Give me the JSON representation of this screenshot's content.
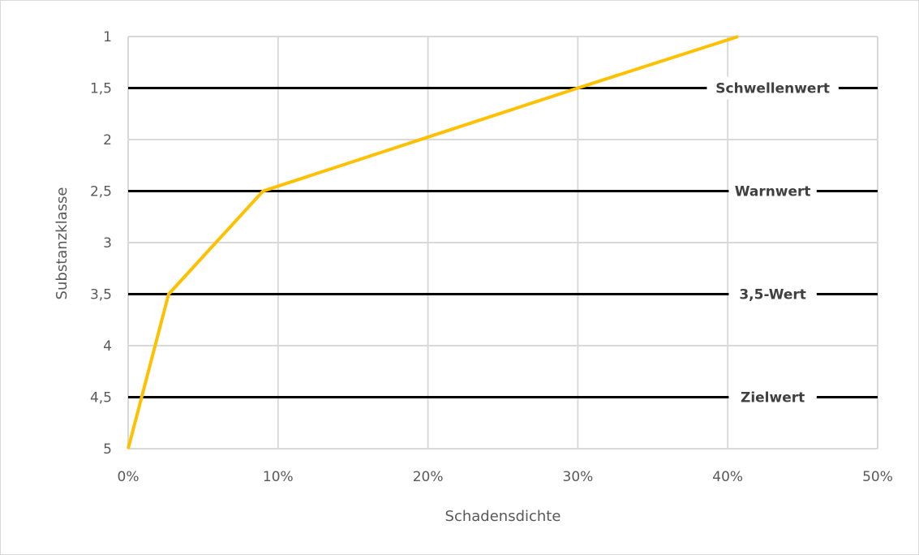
{
  "chart_data": {
    "type": "line",
    "title": "",
    "xlabel": "Schadensdichte",
    "ylabel": "Substanzklasse",
    "xlim": [
      0,
      0.5
    ],
    "ylim": [
      1,
      5
    ],
    "y_axis_reversed": true,
    "grid": true,
    "x_ticks": [
      {
        "value": 0.0,
        "label": "0%"
      },
      {
        "value": 0.1,
        "label": "10%"
      },
      {
        "value": 0.2,
        "label": "20%"
      },
      {
        "value": 0.3,
        "label": "30%"
      },
      {
        "value": 0.4,
        "label": "40%"
      },
      {
        "value": 0.5,
        "label": "50%"
      }
    ],
    "y_ticks": [
      {
        "value": 1,
        "label": "1"
      },
      {
        "value": 1.5,
        "label": "1,5"
      },
      {
        "value": 2,
        "label": "2"
      },
      {
        "value": 2.5,
        "label": "2,5"
      },
      {
        "value": 3,
        "label": "3"
      },
      {
        "value": 3.5,
        "label": "3,5"
      },
      {
        "value": 4,
        "label": "4"
      },
      {
        "value": 4.5,
        "label": "4,5"
      },
      {
        "value": 5,
        "label": "5"
      }
    ],
    "series": [
      {
        "color": "#ffc000",
        "points": [
          {
            "x": 0.0,
            "y": 5.0
          },
          {
            "x": 0.027,
            "y": 3.5
          },
          {
            "x": 0.09,
            "y": 2.5
          },
          {
            "x": 0.3,
            "y": 1.5
          },
          {
            "x": 0.407,
            "y": 1.0
          }
        ]
      }
    ],
    "reference_lines": [
      {
        "y": 1.5,
        "label": "Schwellenwert",
        "color": "#000000"
      },
      {
        "y": 2.5,
        "label": "Warnwert",
        "color": "#000000"
      },
      {
        "y": 3.5,
        "label": "3,5-Wert",
        "color": "#000000"
      },
      {
        "y": 4.5,
        "label": "Zielwert",
        "color": "#000000"
      }
    ],
    "colors": {
      "grid": "#d9d9d9",
      "text": "#595959",
      "frame": "#d9d9d9"
    }
  }
}
